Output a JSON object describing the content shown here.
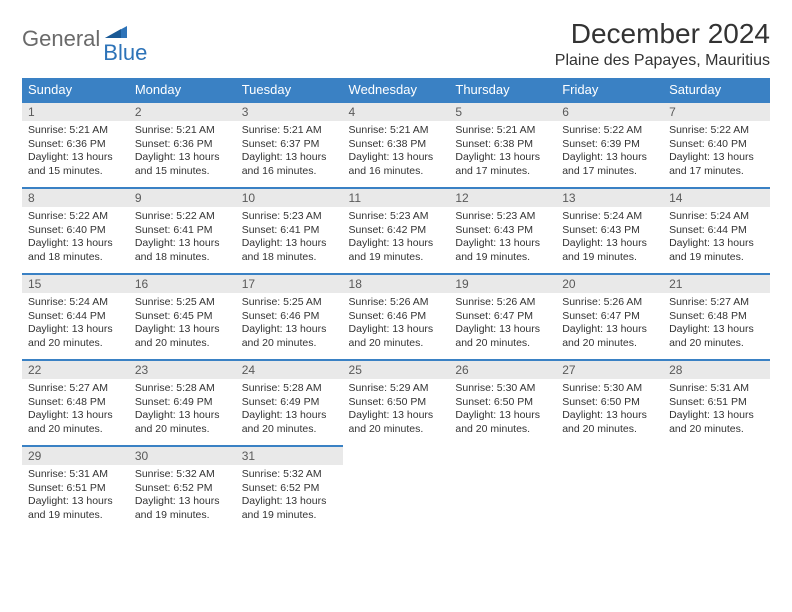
{
  "logo": {
    "general": "General",
    "blue": "Blue"
  },
  "title": "December 2024",
  "location": "Plaine des Papayes, Mauritius",
  "weekday_headers": [
    "Sunday",
    "Monday",
    "Tuesday",
    "Wednesday",
    "Thursday",
    "Friday",
    "Saturday"
  ],
  "colors": {
    "header_bg": "#3a81c4",
    "daynum_bg": "#e9e9e9",
    "daynum_border": "#3a81c4",
    "text": "#333333",
    "logo_gray": "#6a6a6a",
    "logo_blue": "#2d73b8"
  },
  "fonts": {
    "title_size": 28,
    "location_size": 16,
    "header_size": 13,
    "daynum_size": 12,
    "body_size": 10.5
  },
  "days": [
    {
      "n": "1",
      "sunrise": "5:21 AM",
      "sunset": "6:36 PM",
      "daylight": "13 hours and 15 minutes."
    },
    {
      "n": "2",
      "sunrise": "5:21 AM",
      "sunset": "6:36 PM",
      "daylight": "13 hours and 15 minutes."
    },
    {
      "n": "3",
      "sunrise": "5:21 AM",
      "sunset": "6:37 PM",
      "daylight": "13 hours and 16 minutes."
    },
    {
      "n": "4",
      "sunrise": "5:21 AM",
      "sunset": "6:38 PM",
      "daylight": "13 hours and 16 minutes."
    },
    {
      "n": "5",
      "sunrise": "5:21 AM",
      "sunset": "6:38 PM",
      "daylight": "13 hours and 17 minutes."
    },
    {
      "n": "6",
      "sunrise": "5:22 AM",
      "sunset": "6:39 PM",
      "daylight": "13 hours and 17 minutes."
    },
    {
      "n": "7",
      "sunrise": "5:22 AM",
      "sunset": "6:40 PM",
      "daylight": "13 hours and 17 minutes."
    },
    {
      "n": "8",
      "sunrise": "5:22 AM",
      "sunset": "6:40 PM",
      "daylight": "13 hours and 18 minutes."
    },
    {
      "n": "9",
      "sunrise": "5:22 AM",
      "sunset": "6:41 PM",
      "daylight": "13 hours and 18 minutes."
    },
    {
      "n": "10",
      "sunrise": "5:23 AM",
      "sunset": "6:41 PM",
      "daylight": "13 hours and 18 minutes."
    },
    {
      "n": "11",
      "sunrise": "5:23 AM",
      "sunset": "6:42 PM",
      "daylight": "13 hours and 19 minutes."
    },
    {
      "n": "12",
      "sunrise": "5:23 AM",
      "sunset": "6:43 PM",
      "daylight": "13 hours and 19 minutes."
    },
    {
      "n": "13",
      "sunrise": "5:24 AM",
      "sunset": "6:43 PM",
      "daylight": "13 hours and 19 minutes."
    },
    {
      "n": "14",
      "sunrise": "5:24 AM",
      "sunset": "6:44 PM",
      "daylight": "13 hours and 19 minutes."
    },
    {
      "n": "15",
      "sunrise": "5:24 AM",
      "sunset": "6:44 PM",
      "daylight": "13 hours and 20 minutes."
    },
    {
      "n": "16",
      "sunrise": "5:25 AM",
      "sunset": "6:45 PM",
      "daylight": "13 hours and 20 minutes."
    },
    {
      "n": "17",
      "sunrise": "5:25 AM",
      "sunset": "6:46 PM",
      "daylight": "13 hours and 20 minutes."
    },
    {
      "n": "18",
      "sunrise": "5:26 AM",
      "sunset": "6:46 PM",
      "daylight": "13 hours and 20 minutes."
    },
    {
      "n": "19",
      "sunrise": "5:26 AM",
      "sunset": "6:47 PM",
      "daylight": "13 hours and 20 minutes."
    },
    {
      "n": "20",
      "sunrise": "5:26 AM",
      "sunset": "6:47 PM",
      "daylight": "13 hours and 20 minutes."
    },
    {
      "n": "21",
      "sunrise": "5:27 AM",
      "sunset": "6:48 PM",
      "daylight": "13 hours and 20 minutes."
    },
    {
      "n": "22",
      "sunrise": "5:27 AM",
      "sunset": "6:48 PM",
      "daylight": "13 hours and 20 minutes."
    },
    {
      "n": "23",
      "sunrise": "5:28 AM",
      "sunset": "6:49 PM",
      "daylight": "13 hours and 20 minutes."
    },
    {
      "n": "24",
      "sunrise": "5:28 AM",
      "sunset": "6:49 PM",
      "daylight": "13 hours and 20 minutes."
    },
    {
      "n": "25",
      "sunrise": "5:29 AM",
      "sunset": "6:50 PM",
      "daylight": "13 hours and 20 minutes."
    },
    {
      "n": "26",
      "sunrise": "5:30 AM",
      "sunset": "6:50 PM",
      "daylight": "13 hours and 20 minutes."
    },
    {
      "n": "27",
      "sunrise": "5:30 AM",
      "sunset": "6:50 PM",
      "daylight": "13 hours and 20 minutes."
    },
    {
      "n": "28",
      "sunrise": "5:31 AM",
      "sunset": "6:51 PM",
      "daylight": "13 hours and 20 minutes."
    },
    {
      "n": "29",
      "sunrise": "5:31 AM",
      "sunset": "6:51 PM",
      "daylight": "13 hours and 19 minutes."
    },
    {
      "n": "30",
      "sunrise": "5:32 AM",
      "sunset": "6:52 PM",
      "daylight": "13 hours and 19 minutes."
    },
    {
      "n": "31",
      "sunrise": "5:32 AM",
      "sunset": "6:52 PM",
      "daylight": "13 hours and 19 minutes."
    }
  ],
  "labels": {
    "sunrise": "Sunrise: ",
    "sunset": "Sunset: ",
    "daylight": "Daylight: "
  },
  "layout": {
    "first_weekday_index": 0,
    "weeks": 5,
    "cols": 7
  }
}
